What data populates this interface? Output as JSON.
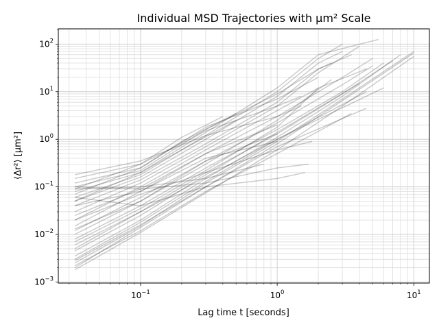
{
  "chart_data": {
    "type": "line",
    "title": "Individual MSD Trajectories with μm² Scale",
    "xlabel": "Lag time t [seconds]",
    "ylabel": "⟨Δr²⟩ [μm²]",
    "xscale": "log",
    "yscale": "log",
    "xlim": [
      0.025,
      13
    ],
    "ylim": [
      0.00095,
      210
    ],
    "grid": true,
    "legend": "none",
    "line_color": "#000000",
    "line_alpha": 0.2,
    "x_ticks": [
      {
        "value": 0.1,
        "base": "10",
        "exp": "−1"
      },
      {
        "value": 1,
        "base": "10",
        "exp": "0"
      },
      {
        "value": 10,
        "base": "10",
        "exp": "1"
      }
    ],
    "y_ticks": [
      {
        "value": 0.001,
        "base": "10",
        "exp": "−3"
      },
      {
        "value": 0.01,
        "base": "10",
        "exp": "−2"
      },
      {
        "value": 0.1,
        "base": "10",
        "exp": "−1"
      },
      {
        "value": 1,
        "base": "10",
        "exp": "0"
      },
      {
        "value": 10,
        "base": "10",
        "exp": "1"
      },
      {
        "value": 100,
        "base": "10",
        "exp": "2"
      }
    ],
    "series": [
      {
        "x": [
          0.033,
          0.1,
          0.3,
          1,
          3,
          10
        ],
        "y": [
          0.0018,
          0.011,
          0.075,
          0.6,
          5.0,
          55
        ]
      },
      {
        "x": [
          0.033,
          0.1,
          0.3,
          1,
          3,
          10
        ],
        "y": [
          0.002,
          0.014,
          0.1,
          0.8,
          6.5,
          65
        ]
      },
      {
        "x": [
          0.033,
          0.1,
          0.3,
          1,
          3,
          10
        ],
        "y": [
          0.0025,
          0.015,
          0.12,
          0.9,
          7.0,
          70
        ]
      },
      {
        "x": [
          0.033,
          0.1,
          0.3,
          1,
          3,
          8
        ],
        "y": [
          0.0035,
          0.02,
          0.15,
          1.1,
          8.0,
          60
        ]
      },
      {
        "x": [
          0.033,
          0.1,
          0.3,
          1,
          3,
          7
        ],
        "y": [
          0.005,
          0.03,
          0.2,
          1.3,
          9.0,
          45
        ]
      },
      {
        "x": [
          0.033,
          0.1,
          0.3,
          1,
          3,
          6
        ],
        "y": [
          0.008,
          0.04,
          0.25,
          1.6,
          10,
          40
        ]
      },
      {
        "x": [
          0.033,
          0.1,
          0.3,
          1,
          3,
          5
        ],
        "y": [
          0.012,
          0.06,
          0.35,
          2.2,
          14,
          35
        ]
      },
      {
        "x": [
          0.033,
          0.1,
          0.3,
          1,
          3,
          5
        ],
        "y": [
          0.015,
          0.08,
          0.5,
          3.0,
          20,
          50
        ]
      },
      {
        "x": [
          0.033,
          0.1,
          0.3,
          1,
          2,
          4.5
        ],
        "y": [
          0.02,
          0.1,
          0.6,
          4.0,
          12,
          30
        ]
      },
      {
        "x": [
          0.033,
          0.1,
          0.3,
          1,
          2,
          4
        ],
        "y": [
          0.03,
          0.12,
          0.7,
          5.0,
          25,
          90
        ]
      },
      {
        "x": [
          0.033,
          0.1,
          0.3,
          1,
          2,
          3.5
        ],
        "y": [
          0.04,
          0.14,
          0.8,
          6.0,
          30,
          60
        ]
      },
      {
        "x": [
          0.033,
          0.1,
          0.3,
          1,
          2,
          3
        ],
        "y": [
          0.05,
          0.16,
          1.0,
          8.0,
          40,
          70
        ]
      },
      {
        "x": [
          0.033,
          0.1,
          0.3,
          1,
          2,
          3
        ],
        "y": [
          0.06,
          0.18,
          1.2,
          10,
          50,
          100
        ]
      },
      {
        "x": [
          0.033,
          0.1,
          0.3,
          1,
          2,
          5.5
        ],
        "y": [
          0.08,
          0.2,
          1.4,
          12,
          60,
          125
        ]
      },
      {
        "x": [
          0.033,
          0.1,
          0.3,
          1,
          2,
          2.5
        ],
        "y": [
          0.1,
          0.22,
          1.6,
          9.0,
          30,
          40
        ]
      },
      {
        "x": [
          0.033,
          0.1,
          0.3,
          1,
          2
        ],
        "y": [
          0.12,
          0.25,
          1.8,
          7.0,
          20
        ]
      },
      {
        "x": [
          0.033,
          0.1,
          0.3,
          1,
          1.5
        ],
        "y": [
          0.15,
          0.3,
          1.5,
          5.0,
          8.0
        ]
      },
      {
        "x": [
          0.033,
          0.1,
          0.3,
          1,
          1.5
        ],
        "y": [
          0.18,
          0.35,
          1.2,
          3.0,
          5.0
        ]
      },
      {
        "x": [
          0.033,
          0.1,
          0.3,
          1,
          2
        ],
        "y": [
          0.007,
          0.035,
          0.22,
          1.8,
          12
        ]
      },
      {
        "x": [
          0.033,
          0.1,
          0.3,
          1,
          2.5
        ],
        "y": [
          0.01,
          0.05,
          0.3,
          2.5,
          18
        ]
      },
      {
        "x": [
          0.033,
          0.1,
          0.3,
          1,
          4
        ],
        "y": [
          0.0045,
          0.025,
          0.18,
          1.4,
          15
        ]
      },
      {
        "x": [
          0.033,
          0.1,
          0.3,
          1,
          4.5
        ],
        "y": [
          0.006,
          0.03,
          0.16,
          1.0,
          10
        ]
      },
      {
        "x": [
          0.033,
          0.1,
          0.3,
          1,
          6
        ],
        "y": [
          0.003,
          0.018,
          0.13,
          1.0,
          12
        ]
      },
      {
        "x": [
          0.033,
          0.1,
          0.3,
          1,
          3.5
        ],
        "y": [
          0.0022,
          0.012,
          0.08,
          0.5,
          3.5
        ]
      },
      {
        "x": [
          0.033,
          0.1,
          0.3,
          1,
          4.5
        ],
        "y": [
          0.0028,
          0.016,
          0.1,
          0.7,
          4.5
        ]
      },
      {
        "x": [
          0.033,
          0.1,
          0.3,
          1,
          1.8
        ],
        "y": [
          0.02,
          0.07,
          0.2,
          0.6,
          0.9
        ]
      },
      {
        "x": [
          0.033,
          0.1,
          0.3,
          1,
          1.7
        ],
        "y": [
          0.1,
          0.09,
          0.12,
          0.25,
          0.3
        ]
      },
      {
        "x": [
          0.033,
          0.1,
          0.3,
          1,
          1.6
        ],
        "y": [
          0.06,
          0.04,
          0.1,
          0.15,
          0.2
        ]
      },
      {
        "x": [
          0.033,
          0.1,
          0.3,
          0.8
        ],
        "y": [
          0.09,
          0.1,
          0.15,
          0.3
        ]
      },
      {
        "x": [
          0.033,
          0.1,
          0.3,
          1
        ],
        "y": [
          0.04,
          0.08,
          0.4,
          0.9
        ]
      },
      {
        "x": [
          0.033,
          0.1,
          0.3,
          1
        ],
        "y": [
          0.025,
          0.09,
          0.5,
          2.0
        ]
      },
      {
        "x": [
          0.033,
          0.1,
          0.3,
          1
        ],
        "y": [
          0.013,
          0.05,
          0.35,
          1.3
        ]
      },
      {
        "x": [
          0.033,
          0.1,
          0.2,
          0.5
        ],
        "y": [
          0.05,
          0.2,
          0.6,
          2.5
        ]
      },
      {
        "x": [
          0.033,
          0.1,
          0.2,
          0.5
        ],
        "y": [
          0.07,
          0.25,
          0.9,
          3.5
        ]
      },
      {
        "x": [
          0.033,
          0.1,
          0.2,
          0.4
        ],
        "y": [
          0.09,
          0.3,
          1.1,
          3.0
        ]
      }
    ]
  }
}
